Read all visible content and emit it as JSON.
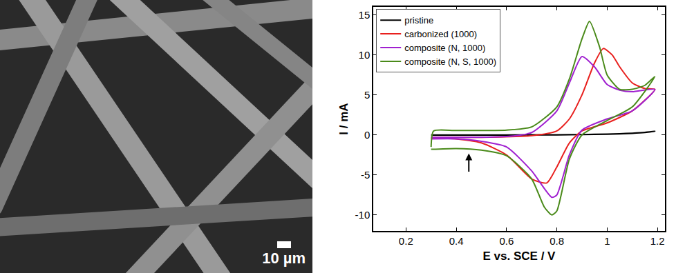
{
  "micrograph": {
    "scale_bar": "10 µm"
  },
  "chart_data": {
    "type": "line",
    "x_label": "E vs. SCE / V",
    "y_label": "I / mA",
    "xlim": [
      0.07,
      1.23
    ],
    "xticks": [
      0.2,
      0.4,
      0.6,
      0.8,
      1.0,
      1.2
    ],
    "ylim": [
      -12,
      16
    ],
    "yticks": [
      -10,
      -5,
      0,
      5,
      10,
      15
    ],
    "grid": false,
    "legend": "upper left",
    "arrow": {
      "x": 0.45,
      "y": -2.3
    },
    "series": [
      {
        "name": "pristine",
        "color": "#000000",
        "x": [
          0.3,
          0.5,
          0.7,
          0.8,
          0.9,
          1.0,
          1.05,
          1.1,
          1.15,
          1.19,
          1.15,
          1.1,
          1.0,
          0.8,
          0.6,
          0.4,
          0.3
        ],
        "values": [
          0.0,
          0.0,
          0.01,
          0.02,
          0.05,
          0.1,
          0.15,
          0.22,
          0.32,
          0.45,
          0.3,
          0.2,
          0.08,
          0.0,
          -0.02,
          -0.03,
          -0.03
        ]
      },
      {
        "name": "carbonized (1000)",
        "color": "#e8201e",
        "x": [
          0.3,
          0.5,
          0.7,
          0.8,
          0.85,
          0.9,
          0.95,
          0.985,
          1.02,
          1.05,
          1.1,
          1.15,
          1.19,
          1.1,
          1.0,
          0.9,
          0.85,
          0.8,
          0.76,
          0.7,
          0.6,
          0.5,
          0.4,
          0.3
        ],
        "values": [
          -0.3,
          -0.3,
          -0.1,
          0.5,
          2.0,
          5.0,
          9.0,
          10.8,
          10.0,
          8.5,
          6.5,
          5.8,
          5.7,
          3.0,
          1.5,
          0.5,
          -1.0,
          -4.0,
          -6.0,
          -5.5,
          -2.5,
          -1.0,
          -0.5,
          -0.4
        ]
      },
      {
        "name": "composite (N, 1000)",
        "color": "#a020d0",
        "x": [
          0.3,
          0.6,
          0.7,
          0.8,
          0.85,
          0.9,
          0.95,
          1.0,
          1.05,
          1.1,
          1.19,
          1.1,
          1.0,
          0.9,
          0.85,
          0.8,
          0.78,
          0.7,
          0.6,
          0.5,
          0.4,
          0.3
        ],
        "values": [
          -0.3,
          -0.2,
          0.3,
          3.0,
          6.5,
          9.8,
          8.5,
          6.3,
          5.6,
          5.4,
          5.7,
          3.0,
          2.0,
          0.6,
          -2.5,
          -7.5,
          -7.8,
          -4.5,
          -1.5,
          -0.8,
          -0.5,
          -0.5
        ]
      },
      {
        "name": "composite (N, S, 1000)",
        "color": "#4a8a1a",
        "x": [
          0.3,
          0.31,
          0.4,
          0.6,
          0.7,
          0.8,
          0.85,
          0.9,
          0.93,
          0.97,
          1.0,
          1.05,
          1.1,
          1.15,
          1.19,
          1.1,
          1.0,
          0.9,
          0.85,
          0.8,
          0.78,
          0.75,
          0.7,
          0.6,
          0.5,
          0.4,
          0.3
        ],
        "values": [
          -1.5,
          0.5,
          0.55,
          0.6,
          1.0,
          3.5,
          7.0,
          12.0,
          14.2,
          11.0,
          7.5,
          5.7,
          5.7,
          6.2,
          7.3,
          3.5,
          1.8,
          0.0,
          -3.0,
          -9.5,
          -10.0,
          -9.0,
          -5.5,
          -2.6,
          -1.9,
          -1.7,
          -1.8
        ]
      }
    ]
  }
}
